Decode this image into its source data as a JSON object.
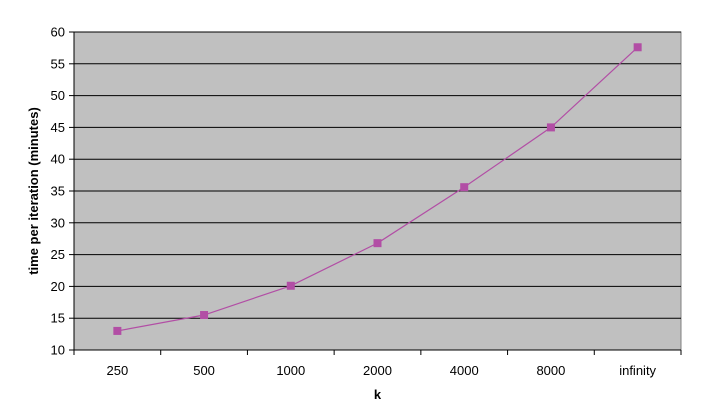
{
  "chart_data": {
    "type": "line",
    "categories": [
      "250",
      "500",
      "1000",
      "2000",
      "4000",
      "8000",
      "infinity"
    ],
    "series": [
      {
        "values": [
          13,
          15.5,
          20.1,
          26.8,
          35.6,
          45,
          57.6
        ]
      }
    ],
    "xlabel": "k",
    "ylabel": "time per iteration (minutes)",
    "ylim": [
      10,
      60
    ],
    "yticks": [
      10,
      15,
      20,
      25,
      30,
      35,
      40,
      45,
      50,
      55,
      60
    ],
    "grid": "horizontal",
    "colors": {
      "plot_background": "#c0c0c0",
      "series": "#b24ea5",
      "grid": "#000000"
    }
  }
}
